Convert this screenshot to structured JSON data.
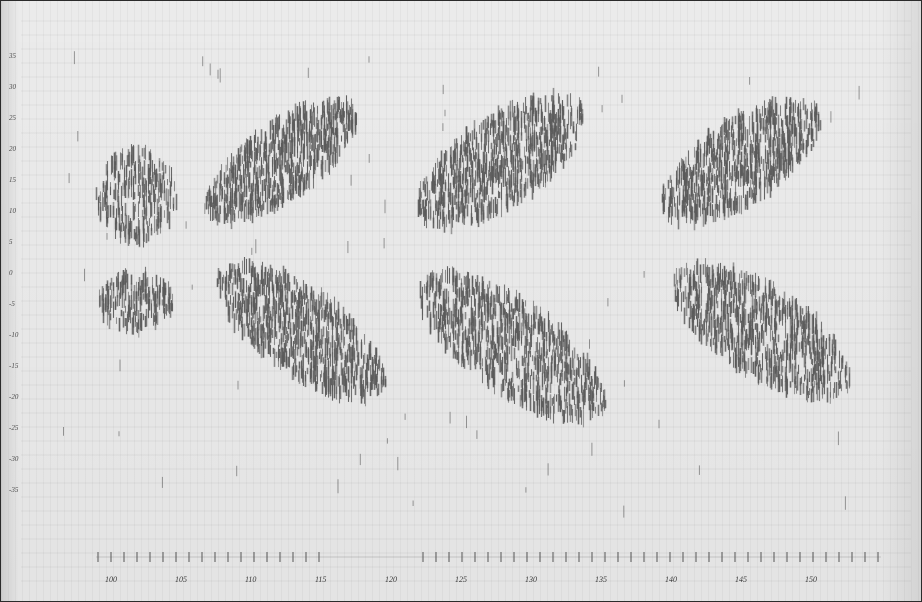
{
  "sheet": {
    "description_none": "",
    "paper_color": "#ebebeb",
    "ink_color": "#5a5a5a",
    "vertical_annotations": [
      "-35",
      "-30",
      "-25",
      "-20",
      "-15",
      "-10",
      "-5",
      "0",
      "5",
      "10",
      "15",
      "20",
      "25",
      "30",
      "35"
    ],
    "bottom_annotations": [
      "100",
      "105",
      "110",
      "115",
      "120",
      "125",
      "130",
      "135",
      "140",
      "145",
      "150"
    ]
  }
}
